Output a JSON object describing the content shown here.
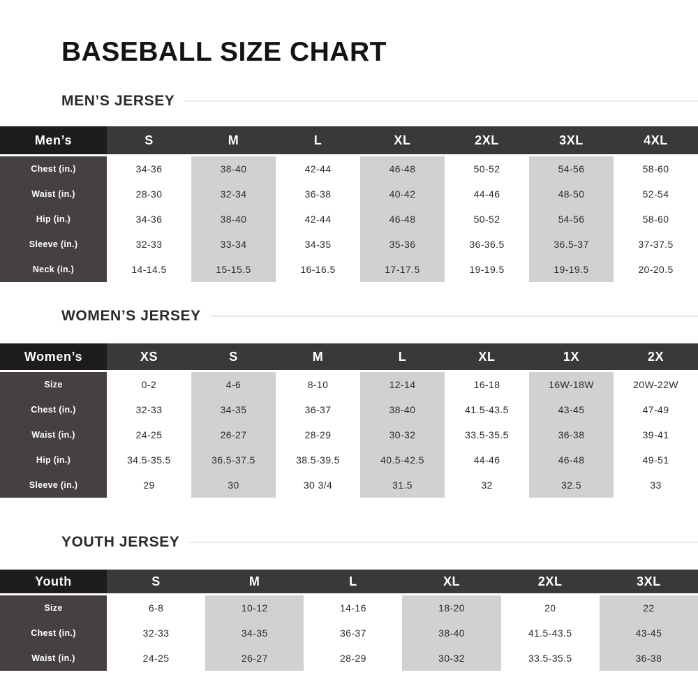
{
  "page_title": "BASEBALL SIZE CHART",
  "colors": {
    "background": "#ffffff",
    "corner_cell": "#1e1b1c",
    "header_row": "#3b3839",
    "row_label_column": "#454142",
    "shaded_column": "#d1d1d1",
    "data_text": "#2d2a2b",
    "heading_text": "#2c292a",
    "heading_rule": "#e9e9e9"
  },
  "chart_data": [
    {
      "type": "table",
      "id": "mens",
      "title": "MEN’S JERSEY",
      "corner_label": "Men’s",
      "columns": [
        "S",
        "M",
        "L",
        "XL",
        "2XL",
        "3XL",
        "4XL"
      ],
      "shaded_columns": [
        "M",
        "XL",
        "3XL"
      ],
      "rows": [
        {
          "label": "Chest (in.)",
          "values": [
            "34-36",
            "38-40",
            "42-44",
            "46-48",
            "50-52",
            "54-56",
            "58-60"
          ]
        },
        {
          "label": "Waist (in.)",
          "values": [
            "28-30",
            "32-34",
            "36-38",
            "40-42",
            "44-46",
            "48-50",
            "52-54"
          ]
        },
        {
          "label": "Hip (in.)",
          "values": [
            "34-36",
            "38-40",
            "42-44",
            "46-48",
            "50-52",
            "54-56",
            "58-60"
          ]
        },
        {
          "label": "Sleeve (in.)",
          "values": [
            "32-33",
            "33-34",
            "34-35",
            "35-36",
            "36-36.5",
            "36.5-37",
            "37-37.5"
          ]
        },
        {
          "label": "Neck (in.)",
          "values": [
            "14-14.5",
            "15-15.5",
            "16-16.5",
            "17-17.5",
            "19-19.5",
            "19-19.5",
            "20-20.5"
          ]
        }
      ]
    },
    {
      "type": "table",
      "id": "womens",
      "title": "WOMEN’S JERSEY",
      "corner_label": "Women’s",
      "columns": [
        "XS",
        "S",
        "M",
        "L",
        "XL",
        "1X",
        "2X"
      ],
      "shaded_columns": [
        "S",
        "L",
        "1X"
      ],
      "rows": [
        {
          "label": "Size",
          "values": [
            "0-2",
            "4-6",
            "8-10",
            "12-14",
            "16-18",
            "16W-18W",
            "20W-22W"
          ]
        },
        {
          "label": "Chest (in.)",
          "values": [
            "32-33",
            "34-35",
            "36-37",
            "38-40",
            "41.5-43.5",
            "43-45",
            "47-49"
          ]
        },
        {
          "label": "Waist (in.)",
          "values": [
            "24-25",
            "26-27",
            "28-29",
            "30-32",
            "33.5-35.5",
            "36-38",
            "39-41"
          ]
        },
        {
          "label": "Hip (in.)",
          "values": [
            "34.5-35.5",
            "36.5-37.5",
            "38.5-39.5",
            "40.5-42.5",
            "44-46",
            "46-48",
            "49-51"
          ]
        },
        {
          "label": "Sleeve (in.)",
          "values": [
            "29",
            "30",
            "30 3/4",
            "31.5",
            "32",
            "32.5",
            "33"
          ]
        }
      ]
    },
    {
      "type": "table",
      "id": "youth",
      "title": "YOUTH JERSEY",
      "corner_label": "Youth",
      "columns": [
        "S",
        "M",
        "L",
        "XL",
        "2XL",
        "3XL"
      ],
      "shaded_columns": [
        "M",
        "XL",
        "3XL"
      ],
      "rows": [
        {
          "label": "Size",
          "values": [
            "6-8",
            "10-12",
            "14-16",
            "18-20",
            "20",
            "22"
          ]
        },
        {
          "label": "Chest (in.)",
          "values": [
            "32-33",
            "34-35",
            "36-37",
            "38-40",
            "41.5-43.5",
            "43-45"
          ]
        },
        {
          "label": "Waist (in.)",
          "values": [
            "24-25",
            "26-27",
            "28-29",
            "30-32",
            "33.5-35.5",
            "36-38"
          ]
        }
      ]
    }
  ]
}
